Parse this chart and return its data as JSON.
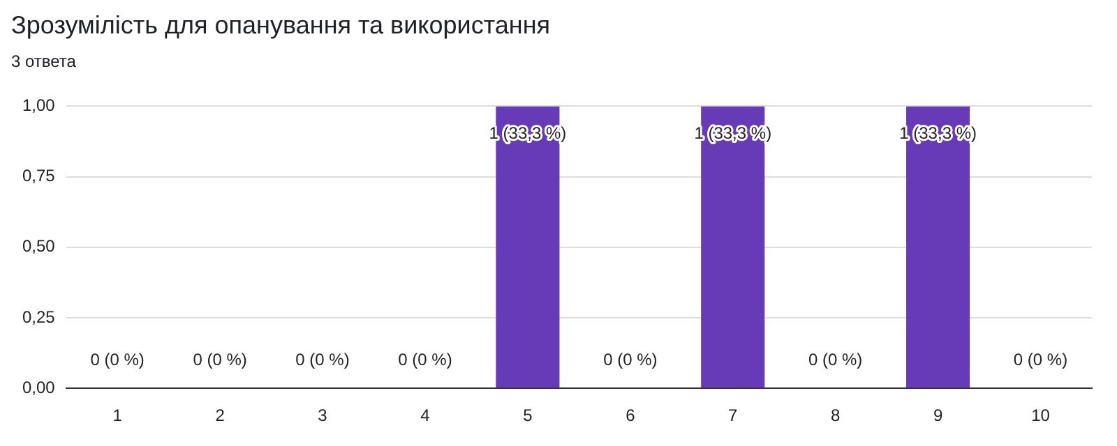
{
  "chart_data": {
    "type": "bar",
    "title": "Зрозумілість для опанування та використання",
    "subtitle": "3 ответа",
    "categories": [
      "1",
      "2",
      "3",
      "4",
      "5",
      "6",
      "7",
      "8",
      "9",
      "10"
    ],
    "values": [
      0,
      0,
      0,
      0,
      1,
      0,
      1,
      0,
      1,
      0
    ],
    "value_labels": [
      "0 (0 %)",
      "0 (0 %)",
      "0 (0 %)",
      "0 (0 %)",
      "1 (33,3 %)",
      "0 (0 %)",
      "1 (33,3 %)",
      "0 (0 %)",
      "1 (33,3 %)",
      "0 (0 %)"
    ],
    "color": "#673ab7",
    "ylim": [
      0,
      1
    ],
    "yticks": [
      {
        "value": 0,
        "label": "0,00"
      },
      {
        "value": 0.25,
        "label": "0,25"
      },
      {
        "value": 0.5,
        "label": "0,50"
      },
      {
        "value": 0.75,
        "label": "0,75"
      },
      {
        "value": 1,
        "label": "1,00"
      }
    ],
    "grid": "y",
    "legend": false
  }
}
